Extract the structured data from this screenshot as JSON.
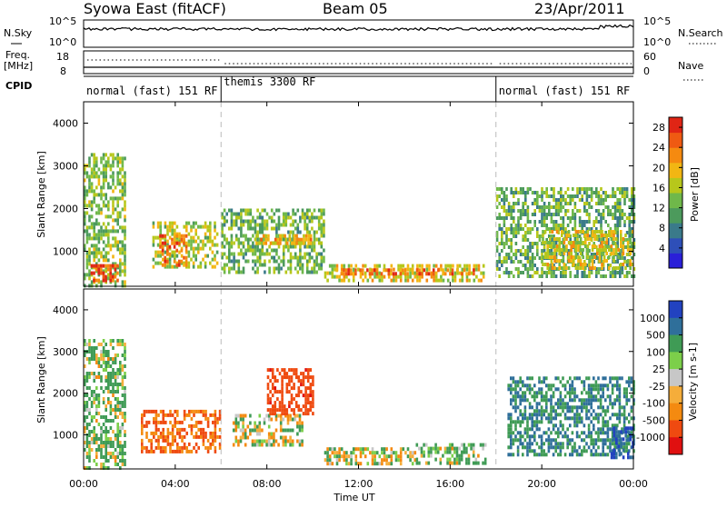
{
  "header": {
    "station": "Syowa East (fitACF)",
    "beam": "Beam 05",
    "date": "23/Apr/2011"
  },
  "top_panels": {
    "noise": {
      "left_label": "N.Sky",
      "right_label": "N.Search",
      "left_ticks": [
        "10^5",
        "10^0"
      ],
      "right_ticks": [
        "10^5",
        "10^0"
      ]
    },
    "freq": {
      "left_label_1": "Freq.",
      "left_label_2": "[MHz]",
      "right_label": "Nave",
      "left_ticks": [
        "18",
        "8"
      ],
      "right_ticks": [
        "60",
        "0"
      ]
    },
    "cpid": {
      "label": "CPID",
      "modes": [
        {
          "name": "normal (fast) 151 RF",
          "start": 0,
          "end": 6
        },
        {
          "name": "themis 3300 RF",
          "start": 6,
          "end": 18
        },
        {
          "name": "normal (fast) 151 RF",
          "start": 18,
          "end": 24
        }
      ]
    }
  },
  "chart_data": [
    {
      "type": "heatmap",
      "title": "",
      "xlabel": "Time UT",
      "ylabel": "Slant Range [km]",
      "xlim": [
        0,
        24
      ],
      "ylim": [
        180,
        4500
      ],
      "x_ticks": [
        "00:00",
        "04:00",
        "08:00",
        "12:00",
        "16:00",
        "20:00",
        "00:00"
      ],
      "y_ticks": [
        "1000",
        "2000",
        "3000",
        "4000"
      ],
      "colorbar": {
        "label": "Power [dB]",
        "ticks": [
          "4",
          "8",
          "12",
          "16",
          "20",
          "24",
          "28"
        ],
        "range": [
          0,
          30
        ]
      },
      "echo_regions": [
        {
          "t0": 0.0,
          "t1": 1.8,
          "r0": 200,
          "r1": 3300,
          "level": 14
        },
        {
          "t0": 0.3,
          "t1": 1.5,
          "r0": 300,
          "r1": 700,
          "level": 27
        },
        {
          "t0": 3.0,
          "t1": 5.8,
          "r0": 600,
          "r1": 1700,
          "level": 16
        },
        {
          "t0": 3.3,
          "t1": 4.5,
          "r0": 700,
          "r1": 1400,
          "level": 24
        },
        {
          "t0": 6.0,
          "t1": 10.5,
          "r0": 500,
          "r1": 2000,
          "level": 13
        },
        {
          "t0": 7.5,
          "t1": 10.0,
          "r0": 1200,
          "r1": 1400,
          "level": 20
        },
        {
          "t0": 10.5,
          "t1": 17.5,
          "r0": 300,
          "r1": 700,
          "level": 18
        },
        {
          "t0": 11.0,
          "t1": 17.0,
          "r0": 450,
          "r1": 600,
          "level": 24
        },
        {
          "t0": 18.0,
          "t1": 24.0,
          "r0": 400,
          "r1": 2500,
          "level": 12
        },
        {
          "t0": 20.0,
          "t1": 24.0,
          "r0": 600,
          "r1": 1500,
          "level": 18
        }
      ]
    },
    {
      "type": "heatmap",
      "title": "",
      "xlabel": "Time UT",
      "ylabel": "Slant Range [km]",
      "xlim": [
        0,
        24
      ],
      "ylim": [
        180,
        4500
      ],
      "x_ticks": [
        "00:00",
        "04:00",
        "08:00",
        "12:00",
        "16:00",
        "20:00",
        "00:00"
      ],
      "y_ticks": [
        "1000",
        "2000",
        "3000",
        "4000"
      ],
      "colorbar": {
        "label": "Velocity [m s-1]",
        "ticks": [
          "1000",
          "500",
          "100",
          "25",
          "-25",
          "-100",
          "-500",
          "-1000"
        ]
      },
      "echo_regions": [
        {
          "t0": 0.0,
          "t1": 1.8,
          "r0": 200,
          "r1": 3300,
          "level": 100
        },
        {
          "t0": 2.5,
          "t1": 6.0,
          "r0": 600,
          "r1": 1600,
          "level": -300
        },
        {
          "t0": 6.5,
          "t1": 9.5,
          "r0": 800,
          "r1": 1500,
          "level": 0
        },
        {
          "t0": 8.0,
          "t1": 10.0,
          "r0": 1500,
          "r1": 2600,
          "level": -600
        },
        {
          "t0": 10.5,
          "t1": 14.5,
          "r0": 300,
          "r1": 700,
          "level": 0
        },
        {
          "t0": 14.5,
          "t1": 17.5,
          "r0": 300,
          "r1": 800,
          "level": 100
        },
        {
          "t0": 18.5,
          "t1": 24.0,
          "r0": 500,
          "r1": 2400,
          "level": 300
        },
        {
          "t0": 23.0,
          "t1": 24.0,
          "r0": 500,
          "r1": 1200,
          "level": 800
        }
      ]
    }
  ]
}
